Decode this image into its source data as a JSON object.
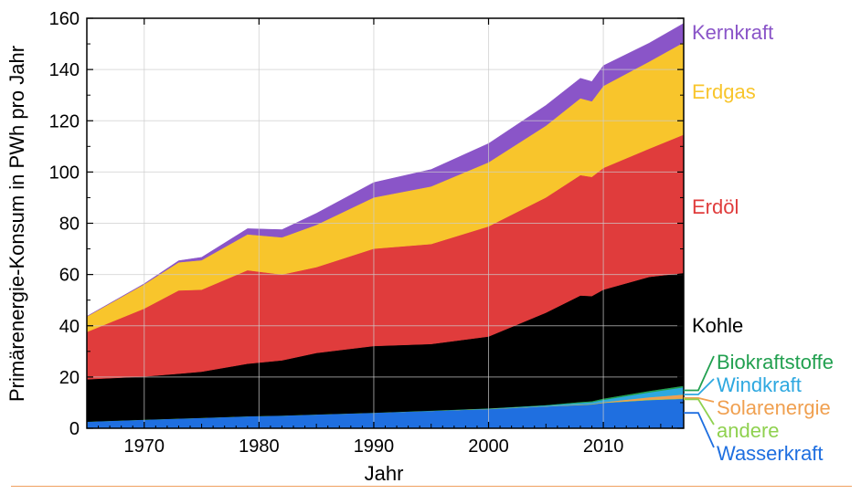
{
  "chart_data": {
    "type": "area",
    "stacked": true,
    "title": "",
    "xlabel": "Jahr",
    "ylabel": "Primärenergie-Konsum in PWh pro Jahr",
    "xlim": [
      1965,
      2017
    ],
    "ylim": [
      0,
      160
    ],
    "xticks": [
      "1970",
      "1980",
      "1990",
      "2000",
      "2010"
    ],
    "yticks": [
      "0",
      "20",
      "40",
      "60",
      "80",
      "100",
      "120",
      "140",
      "160"
    ],
    "grid": true,
    "legend": "right-labels",
    "x": [
      1965,
      1970,
      1973,
      1975,
      1979,
      1982,
      1985,
      1990,
      1995,
      2000,
      2005,
      2008,
      2009,
      2010,
      2014,
      2017
    ],
    "series": [
      {
        "name": "Wasserkraft",
        "color": "#1f6fe0",
        "values": [
          2.6,
          3.4,
          3.8,
          4.1,
          4.7,
          5.0,
          5.4,
          6.1,
          6.8,
          7.5,
          8.5,
          9.1,
          9.3,
          9.9,
          11.0,
          11.5
        ]
      },
      {
        "name": "andere",
        "color": "#8fd14f",
        "values": [
          0.0,
          0.0,
          0.0,
          0.0,
          0.0,
          0.0,
          0.0,
          0.0,
          0.0,
          0.1,
          0.1,
          0.1,
          0.1,
          0.1,
          0.2,
          0.2
        ]
      },
      {
        "name": "Solarenergie",
        "color": "#f0a050",
        "values": [
          0.0,
          0.0,
          0.0,
          0.0,
          0.0,
          0.0,
          0.0,
          0.0,
          0.0,
          0.0,
          0.0,
          0.1,
          0.1,
          0.2,
          0.9,
          1.5
        ]
      },
      {
        "name": "Windkraft",
        "color": "#2ea8e0",
        "values": [
          0.0,
          0.0,
          0.0,
          0.0,
          0.0,
          0.0,
          0.0,
          0.0,
          0.0,
          0.1,
          0.3,
          0.6,
          0.7,
          0.9,
          1.9,
          2.8
        ]
      },
      {
        "name": "Biokraftstoffe",
        "color": "#22a050",
        "values": [
          0.0,
          0.0,
          0.0,
          0.0,
          0.0,
          0.0,
          0.0,
          0.0,
          0.1,
          0.1,
          0.2,
          0.4,
          0.4,
          0.5,
          0.6,
          0.6
        ]
      },
      {
        "name": "Kohle",
        "color": "#000000",
        "values": [
          16.5,
          16.8,
          17.5,
          18.0,
          20.5,
          21.5,
          24.0,
          26.0,
          26.0,
          28.0,
          36.0,
          41.5,
          41.0,
          42.5,
          44.5,
          44.0
        ]
      },
      {
        "name": "Erdöl",
        "color": "#e03c3c",
        "values": [
          18.5,
          26.5,
          32.5,
          32.0,
          36.5,
          33.5,
          33.5,
          38.0,
          39.0,
          43.0,
          45.0,
          47.0,
          46.5,
          47.5,
          50.0,
          54.0
        ]
      },
      {
        "name": "Erdgas",
        "color": "#f8c52c",
        "values": [
          6.0,
          9.5,
          11.0,
          11.5,
          14.0,
          14.5,
          16.5,
          20.0,
          22.5,
          25.0,
          28.0,
          30.0,
          29.5,
          32.0,
          34.0,
          36.0
        ]
      },
      {
        "name": "Kernkraft",
        "color": "#8a55c8",
        "values": [
          0.1,
          0.2,
          0.6,
          1.1,
          2.2,
          3.0,
          4.5,
          5.8,
          6.6,
          7.3,
          7.9,
          7.8,
          7.7,
          7.9,
          7.2,
          7.4
        ]
      }
    ],
    "labels": [
      {
        "name": "Kernkraft",
        "text": "Kernkraft",
        "color": "#8a55c8"
      },
      {
        "name": "Erdgas",
        "text": "Erdgas",
        "color": "#f8c52c"
      },
      {
        "name": "Erdöl",
        "text": "Erdöl",
        "color": "#e03c3c"
      },
      {
        "name": "Kohle",
        "text": "Kohle",
        "color": "#000000"
      },
      {
        "name": "Biokraftstoffe",
        "text": "Biokraftstoffe",
        "color": "#22a050"
      },
      {
        "name": "Windkraft",
        "text": "Windkraft",
        "color": "#2ea8e0"
      },
      {
        "name": "Solarenergie",
        "text": "Solarenergie",
        "color": "#f0a050"
      },
      {
        "name": "andere",
        "text": "andere",
        "color": "#8fd14f"
      },
      {
        "name": "Wasserkraft",
        "text": "Wasserkraft",
        "color": "#1f6fe0"
      }
    ]
  }
}
